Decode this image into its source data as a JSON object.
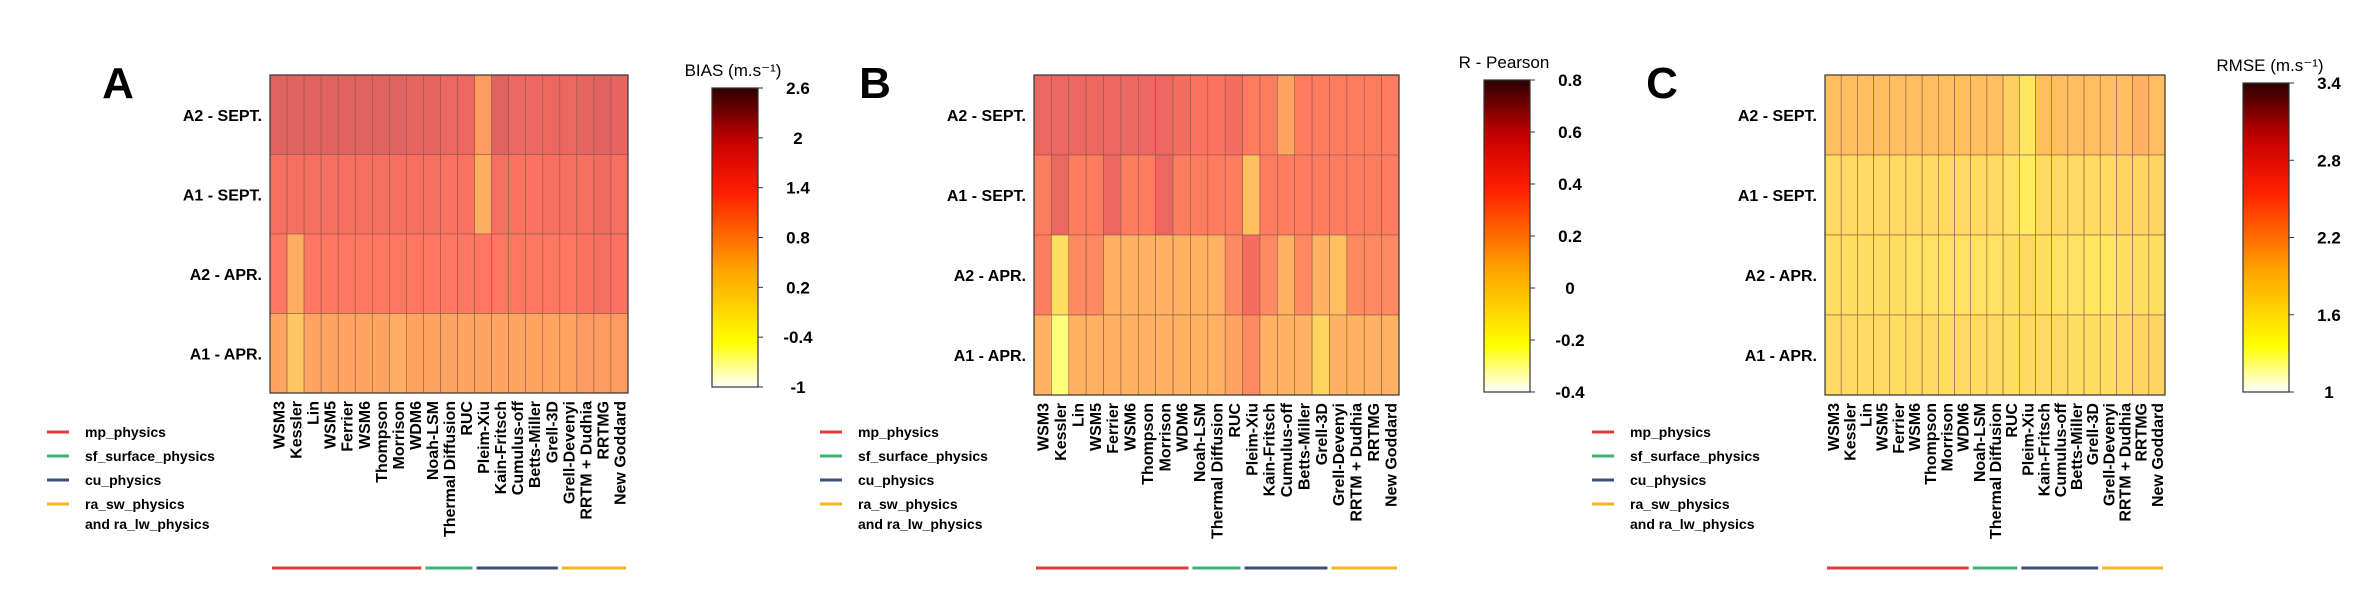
{
  "chart_data": [
    {
      "type": "heatmap",
      "panel_label": "A",
      "colorbar_title": "BIAS (m.s⁻¹)",
      "colorbar_ticks": [
        "2.6",
        "2",
        "1.4",
        "0.8",
        "0.2",
        "-0.4",
        "-1"
      ],
      "colorbar_range": [
        -1,
        2.6
      ],
      "rows": [
        "A2 - SEPT.",
        "A1 - SEPT.",
        "A2 - APR.",
        "A1 - APR."
      ],
      "columns": [
        "WSM3",
        "Kessler",
        "Lin",
        "WSM5",
        "Ferrier",
        "WSM6",
        "Thompson",
        "Morrison",
        "WDM6",
        "Noah-LSM",
        "Thermal Diffusion",
        "RUC",
        "Pleim-Xiu",
        "Kain-Fritsch",
        "Cumulus-off",
        "Betts-Miller",
        "Grell-3D",
        "Grell-Devenyi",
        "RRTM + Dudhia",
        "RRTMG",
        "New Goddard"
      ],
      "values": [
        [
          1.9,
          1.9,
          1.9,
          1.9,
          1.9,
          1.9,
          1.9,
          1.9,
          1.8,
          1.8,
          1.7,
          1.7,
          0.9,
          1.9,
          1.7,
          1.7,
          1.7,
          1.7,
          1.8,
          1.9,
          1.8
        ],
        [
          1.5,
          1.5,
          1.5,
          1.5,
          1.5,
          1.5,
          1.5,
          1.5,
          1.5,
          1.5,
          1.4,
          1.4,
          0.7,
          1.5,
          1.4,
          1.4,
          1.5,
          1.5,
          1.5,
          1.6,
          1.5
        ],
        [
          1.3,
          0.7,
          1.3,
          1.3,
          1.3,
          1.3,
          1.3,
          1.3,
          1.3,
          1.3,
          1.3,
          1.3,
          1.3,
          1.3,
          1.3,
          1.3,
          1.3,
          1.3,
          1.4,
          1.5,
          1.4
        ],
        [
          0.8,
          0.4,
          0.8,
          0.8,
          0.8,
          0.8,
          0.8,
          0.7,
          0.8,
          0.8,
          0.8,
          0.8,
          0.8,
          0.8,
          0.8,
          0.8,
          0.8,
          0.8,
          0.9,
          0.9,
          0.9
        ]
      ]
    },
    {
      "type": "heatmap",
      "panel_label": "B",
      "colorbar_title": "R - Pearson",
      "colorbar_ticks": [
        "0.8",
        "0.6",
        "0.4",
        "0.2",
        "0",
        "-0.2",
        "-0.4"
      ],
      "colorbar_range": [
        -0.4,
        0.8
      ],
      "rows": [
        "A2 - SEPT.",
        "A1 - SEPT.",
        "A2 - APR.",
        "A1 - APR."
      ],
      "columns": [
        "WSM3",
        "Kessler",
        "Lin",
        "WSM5",
        "Ferrier",
        "WSM6",
        "Thompson",
        "Morrison",
        "WDM6",
        "Noah-LSM",
        "Thermal Diffusion",
        "RUC",
        "Pleim-Xiu",
        "Kain-Fritsch",
        "Cumulus-off",
        "Betts-Miller",
        "Grell-3D",
        "Grell-Devenyi",
        "RRTM + Dudhia",
        "RRTMG",
        "New Goddard"
      ],
      "values": [
        [
          0.5,
          0.5,
          0.5,
          0.5,
          0.5,
          0.5,
          0.5,
          0.5,
          0.45,
          0.4,
          0.4,
          0.45,
          0.35,
          0.35,
          0.2,
          0.35,
          0.35,
          0.35,
          0.35,
          0.35,
          0.35
        ],
        [
          0.35,
          0.5,
          0.35,
          0.35,
          0.5,
          0.35,
          0.35,
          0.5,
          0.35,
          0.35,
          0.35,
          0.35,
          0.1,
          0.35,
          0.35,
          0.35,
          0.35,
          0.35,
          0.35,
          0.35,
          0.35
        ],
        [
          0.35,
          -0.05,
          0.3,
          0.3,
          0.15,
          0.15,
          0.15,
          0.15,
          0.15,
          0.15,
          0.15,
          0.3,
          0.45,
          0.3,
          0.15,
          0.3,
          0.15,
          0.1,
          0.3,
          0.3,
          0.3
        ],
        [
          0.15,
          -0.25,
          0.15,
          0.15,
          0.15,
          0.15,
          0.15,
          0.15,
          0.15,
          0.15,
          0.15,
          0.2,
          0.3,
          0.15,
          0.15,
          0.15,
          0.0,
          0.15,
          0.15,
          0.15,
          0.15
        ]
      ]
    },
    {
      "type": "heatmap",
      "panel_label": "C",
      "colorbar_title": "RMSE (m.s⁻¹)",
      "colorbar_ticks": [
        "3.4",
        "2.8",
        "2.2",
        "1.6",
        "1"
      ],
      "colorbar_range": [
        1,
        3.4
      ],
      "rows": [
        "A2 - SEPT.",
        "A1 - SEPT.",
        "A2 - APR.",
        "A1 - APR."
      ],
      "columns": [
        "WSM3",
        "Kessler",
        "Lin",
        "WSM5",
        "Ferrier",
        "WSM6",
        "Thompson",
        "Morrison",
        "WDM6",
        "Noah-LSM",
        "Thermal Diffusion",
        "RUC",
        "Pleim-Xiu",
        "Kain-Fritsch",
        "Cumulus-off",
        "Betts-Miller",
        "Grell-3D",
        "Grell-Devenyi",
        "RRTM + Dudhia",
        "RRTMG",
        "New Goddard"
      ],
      "values": [
        [
          2.0,
          2.0,
          2.0,
          2.0,
          2.0,
          2.0,
          2.0,
          2.0,
          2.0,
          2.0,
          2.0,
          1.85,
          1.6,
          2.0,
          2.0,
          2.0,
          2.0,
          2.0,
          2.0,
          2.1,
          2.0
        ],
        [
          1.75,
          1.75,
          1.75,
          1.75,
          1.75,
          1.75,
          1.75,
          1.75,
          1.75,
          1.75,
          1.75,
          1.65,
          1.55,
          1.75,
          1.75,
          1.75,
          1.75,
          1.75,
          1.8,
          1.8,
          1.8
        ],
        [
          1.7,
          1.7,
          1.7,
          1.7,
          1.7,
          1.65,
          1.65,
          1.65,
          1.65,
          1.65,
          1.65,
          1.7,
          1.75,
          1.7,
          1.65,
          1.65,
          1.6,
          1.6,
          1.7,
          1.7,
          1.7
        ],
        [
          1.75,
          1.75,
          1.75,
          1.75,
          1.7,
          1.75,
          1.75,
          1.7,
          1.75,
          1.75,
          1.75,
          1.7,
          1.75,
          1.75,
          1.75,
          1.7,
          1.7,
          1.7,
          1.75,
          1.8,
          1.8
        ]
      ]
    }
  ],
  "legend": [
    {
      "label": "mp_physics",
      "color": "#e03a3a"
    },
    {
      "label": "sf_surface_physics",
      "color": "#3cb370"
    },
    {
      "label": "cu_physics",
      "color": "#3a4f7a"
    },
    {
      "label": "ra_sw_physics\nand ra_lw_physics",
      "color": "#f2b51c"
    }
  ],
  "column_groups": [
    {
      "start": 0,
      "end": 8,
      "color": "#e03a3a"
    },
    {
      "start": 9,
      "end": 11,
      "color": "#3cb370"
    },
    {
      "start": 12,
      "end": 16,
      "color": "#3a4f7a"
    },
    {
      "start": 17,
      "end": 20,
      "color": "#f2b51c"
    }
  ]
}
